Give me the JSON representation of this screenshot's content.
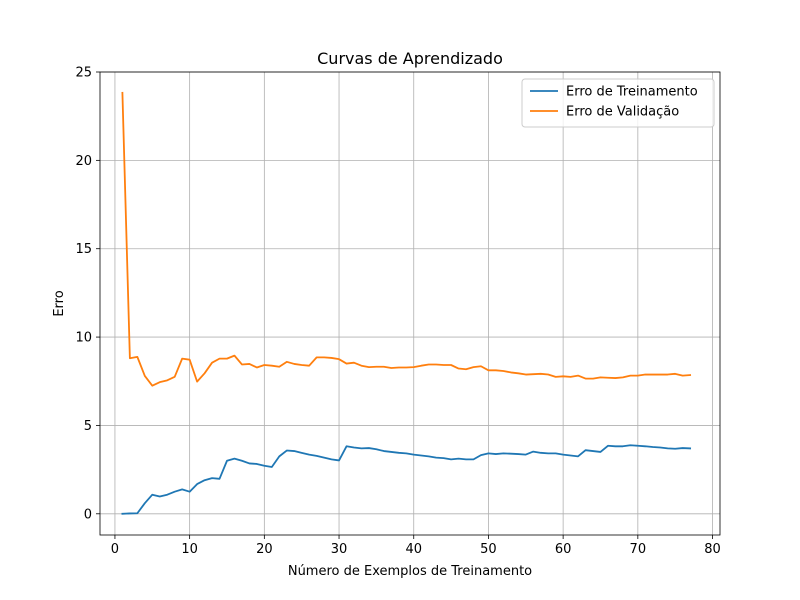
{
  "chart_data": {
    "type": "line",
    "title": "Curvas de Aprendizado",
    "xlabel": "Número de Exemplos de Treinamento",
    "ylabel": "Erro",
    "xlim": [
      -2,
      81
    ],
    "ylim": [
      -1.2,
      25
    ],
    "xticks": [
      0,
      10,
      20,
      30,
      40,
      50,
      60,
      70,
      80
    ],
    "yticks": [
      0,
      5,
      10,
      15,
      20,
      25
    ],
    "grid": true,
    "legend_position": "top-right",
    "x": [
      1,
      2,
      3,
      4,
      5,
      6,
      7,
      8,
      9,
      10,
      11,
      12,
      13,
      14,
      15,
      16,
      17,
      18,
      19,
      20,
      21,
      22,
      23,
      24,
      25,
      26,
      27,
      28,
      29,
      30,
      31,
      32,
      33,
      34,
      35,
      36,
      37,
      38,
      39,
      40,
      41,
      42,
      43,
      44,
      45,
      46,
      47,
      48,
      49,
      50,
      51,
      52,
      53,
      54,
      55,
      56,
      57,
      58,
      59,
      60,
      61,
      62,
      63,
      64,
      65,
      66,
      67,
      68,
      69,
      70,
      71,
      72,
      73,
      74,
      75,
      76,
      77
    ],
    "series": [
      {
        "name": "Erro de Treinamento",
        "color": "#1f77b4",
        "values": [
          0.0,
          0.02,
          0.03,
          0.6,
          1.08,
          0.98,
          1.08,
          1.25,
          1.38,
          1.25,
          1.68,
          1.9,
          2.02,
          1.98,
          3.0,
          3.12,
          3.0,
          2.85,
          2.82,
          2.72,
          2.65,
          3.25,
          3.58,
          3.55,
          3.45,
          3.35,
          3.28,
          3.18,
          3.08,
          3.02,
          3.82,
          3.75,
          3.7,
          3.72,
          3.65,
          3.55,
          3.5,
          3.45,
          3.42,
          3.35,
          3.3,
          3.25,
          3.18,
          3.15,
          3.08,
          3.12,
          3.08,
          3.08,
          3.32,
          3.42,
          3.38,
          3.42,
          3.4,
          3.38,
          3.35,
          3.52,
          3.45,
          3.42,
          3.42,
          3.35,
          3.3,
          3.25,
          3.6,
          3.55,
          3.5,
          3.85,
          3.82,
          3.82,
          3.88,
          3.85,
          3.82,
          3.78,
          3.75,
          3.7,
          3.68,
          3.72,
          3.7
        ]
      },
      {
        "name": "Erro de Validação",
        "color": "#ff7f0e",
        "values": [
          23.82,
          8.8,
          8.88,
          7.8,
          7.25,
          7.45,
          7.55,
          7.75,
          8.78,
          8.72,
          7.48,
          7.95,
          8.55,
          8.78,
          8.78,
          8.95,
          8.45,
          8.48,
          8.28,
          8.42,
          8.38,
          8.32,
          8.6,
          8.48,
          8.42,
          8.38,
          8.85,
          8.85,
          8.82,
          8.75,
          8.5,
          8.55,
          8.38,
          8.3,
          8.32,
          8.32,
          8.25,
          8.28,
          8.28,
          8.3,
          8.38,
          8.45,
          8.45,
          8.42,
          8.42,
          8.22,
          8.18,
          8.3,
          8.35,
          8.12,
          8.12,
          8.08,
          8.0,
          7.95,
          7.88,
          7.9,
          7.92,
          7.88,
          7.75,
          7.78,
          7.75,
          7.82,
          7.65,
          7.65,
          7.72,
          7.7,
          7.68,
          7.72,
          7.82,
          7.82,
          7.88,
          7.88,
          7.88,
          7.88,
          7.92,
          7.82,
          7.85
        ]
      }
    ]
  }
}
